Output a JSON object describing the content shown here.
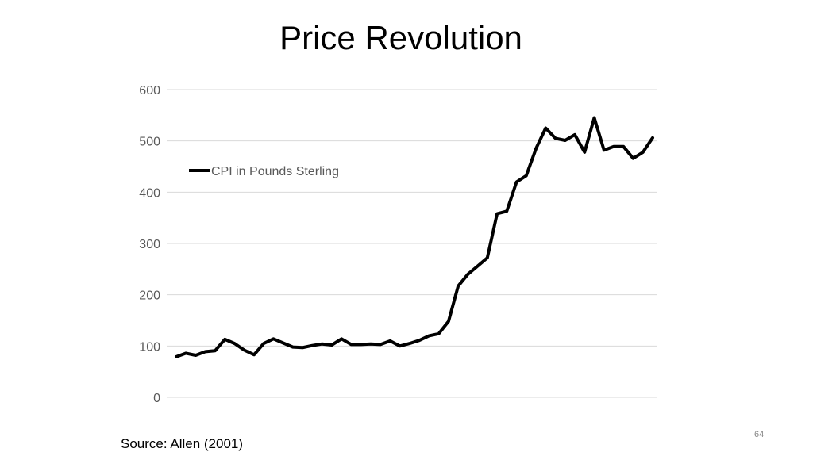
{
  "slide": {
    "title": "Price Revolution",
    "source": "Source: Allen (2001)",
    "page_number": "64"
  },
  "colors": {
    "line": "#000000",
    "grid": "#d9d9d9",
    "tick_text": "#595959"
  },
  "chart_data": {
    "type": "line",
    "title": "Price Revolution",
    "xlabel": "",
    "ylabel": "",
    "ylim": [
      0,
      600
    ],
    "yticks": [
      0,
      100,
      200,
      300,
      400,
      500,
      600
    ],
    "grid": true,
    "legend_position": "upper-left",
    "series": [
      {
        "name": "CPI in Pounds Sterling",
        "values": [
          79,
          86,
          82,
          89,
          91,
          113,
          105,
          92,
          83,
          105,
          114,
          106,
          98,
          97,
          101,
          104,
          102,
          114,
          103,
          103,
          104,
          103,
          110,
          100,
          105,
          111,
          120,
          124,
          148,
          217,
          240,
          256,
          272,
          358,
          363,
          420,
          432,
          485,
          525,
          505,
          501,
          512,
          478,
          545,
          482,
          489,
          489,
          466,
          478,
          506
        ]
      }
    ]
  }
}
